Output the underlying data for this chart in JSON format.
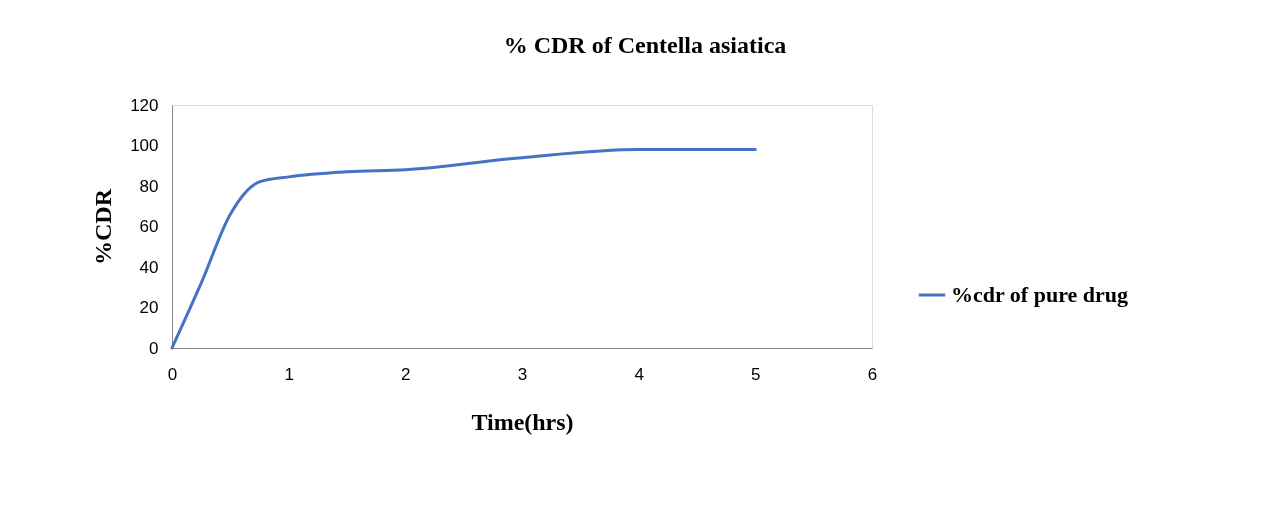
{
  "chart_data": {
    "type": "line",
    "title": "% CDR of Centella asiatica",
    "xlabel": "Time(hrs)",
    "ylabel": "%CDR",
    "x": [
      0,
      0.25,
      0.5,
      0.75,
      1,
      1.5,
      2,
      3,
      4,
      5
    ],
    "series": [
      {
        "name": "%cdr of pure drug",
        "color": "#4472c4",
        "values": [
          0,
          32,
          66,
          82,
          84.5,
          87,
          88,
          94,
          98,
          98
        ]
      }
    ],
    "xlim": [
      0,
      6
    ],
    "xticks": [
      0,
      1,
      2,
      3,
      4,
      5,
      6
    ],
    "ylim": [
      0,
      120
    ],
    "yticks": [
      0,
      20,
      40,
      60,
      80,
      100,
      120
    ],
    "grid": false,
    "legend": "right",
    "marker": "none",
    "line_style": "solid"
  }
}
